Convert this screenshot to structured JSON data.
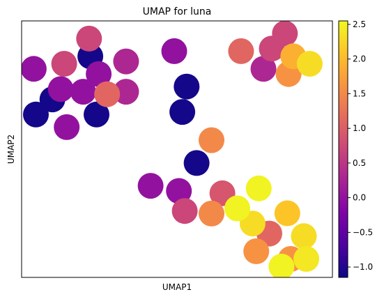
{
  "chart_data": {
    "type": "scatter",
    "title": "UMAP for luna",
    "xlabel": "UMAP1",
    "ylabel": "UMAP2",
    "xlim": [
      0,
      100
    ],
    "ylim": [
      0,
      100
    ],
    "grid": false,
    "colormap": "plasma",
    "colorbar": {
      "min": -1.15,
      "max": 2.55,
      "ticks": [
        -1.0,
        -0.5,
        0.0,
        0.5,
        1.0,
        1.5,
        2.0,
        2.5
      ],
      "tick_labels": [
        "−1.0",
        "−0.5",
        "0.0",
        "0.5",
        "1.0",
        "1.5",
        "2.0",
        "2.5"
      ]
    },
    "points": [
      {
        "x": 22.1,
        "y": 86.2,
        "value": -1.1
      },
      {
        "x": 9.9,
        "y": 69.4,
        "value": -1.1
      },
      {
        "x": 4.6,
        "y": 63.5,
        "value": -1.1
      },
      {
        "x": 24.1,
        "y": 63.5,
        "value": -1.1
      },
      {
        "x": 53.1,
        "y": 74.4,
        "value": -1.1
      },
      {
        "x": 51.7,
        "y": 64.5,
        "value": -1.1
      },
      {
        "x": 56.3,
        "y": 44.6,
        "value": -1.1
      },
      {
        "x": 3.9,
        "y": 81.3,
        "value": 0.0
      },
      {
        "x": 12.6,
        "y": 73.4,
        "value": 0.0
      },
      {
        "x": 19.8,
        "y": 72.4,
        "value": 0.0
      },
      {
        "x": 24.8,
        "y": 79.3,
        "value": 0.0
      },
      {
        "x": 14.5,
        "y": 58.6,
        "value": 0.0
      },
      {
        "x": 49.1,
        "y": 88.2,
        "value": 0.0
      },
      {
        "x": 41.5,
        "y": 35.7,
        "value": 0.0
      },
      {
        "x": 50.6,
        "y": 33.7,
        "value": 0.0
      },
      {
        "x": 33.6,
        "y": 84.2,
        "value": 0.3
      },
      {
        "x": 33.6,
        "y": 72.4,
        "value": 0.3
      },
      {
        "x": 77.8,
        "y": 81.3,
        "value": 0.3
      },
      {
        "x": 13.7,
        "y": 83.3,
        "value": 0.7
      },
      {
        "x": 21.7,
        "y": 93.1,
        "value": 0.7
      },
      {
        "x": 80.5,
        "y": 89.2,
        "value": 0.7
      },
      {
        "x": 84.7,
        "y": 95.1,
        "value": 0.7
      },
      {
        "x": 52.5,
        "y": 25.9,
        "value": 0.7
      },
      {
        "x": 64.6,
        "y": 32.8,
        "value": 0.9
      },
      {
        "x": 27.5,
        "y": 71.4,
        "value": 1.1
      },
      {
        "x": 70.6,
        "y": 88.2,
        "value": 1.1
      },
      {
        "x": 79.7,
        "y": 17.1,
        "value": 1.1
      },
      {
        "x": 61.1,
        "y": 53.5,
        "value": 1.5
      },
      {
        "x": 61.1,
        "y": 24.9,
        "value": 1.5
      },
      {
        "x": 85.9,
        "y": 79.3,
        "value": 1.6
      },
      {
        "x": 75.5,
        "y": 10.2,
        "value": 1.6
      },
      {
        "x": 86.6,
        "y": 7.2,
        "value": 1.6
      },
      {
        "x": 87.4,
        "y": 86.2,
        "value": 1.9
      },
      {
        "x": 85.5,
        "y": 25.0,
        "value": 2.1
      },
      {
        "x": 92.7,
        "y": 83.3,
        "value": 2.3
      },
      {
        "x": 74.3,
        "y": 21.0,
        "value": 2.3
      },
      {
        "x": 90.8,
        "y": 16.1,
        "value": 2.3
      },
      {
        "x": 91.6,
        "y": 7.2,
        "value": 2.4
      },
      {
        "x": 76.3,
        "y": 34.7,
        "value": 2.5
      },
      {
        "x": 69.4,
        "y": 26.9,
        "value": 2.5
      },
      {
        "x": 83.6,
        "y": 4.2,
        "value": 2.5
      }
    ]
  }
}
